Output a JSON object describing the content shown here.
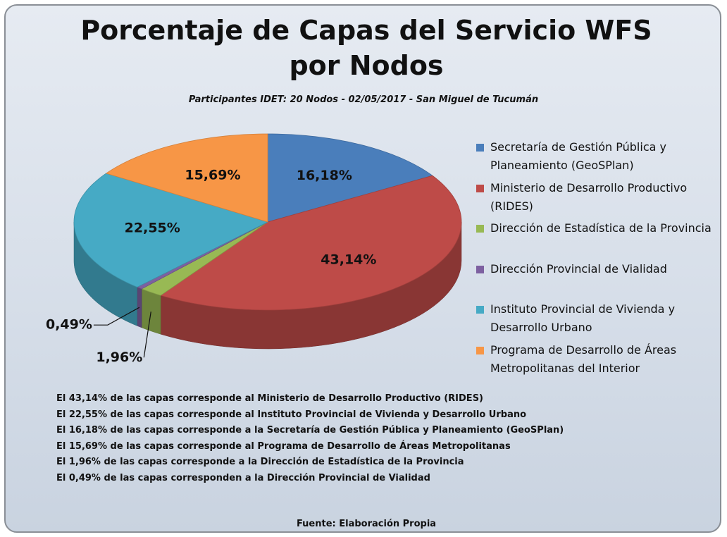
{
  "chart_data": {
    "type": "pie",
    "title": "Porcentaje de Capas del Servicio WFS por Nodos",
    "subtitle": "Participantes IDET: 20 Nodos - 02/05/2017  - San Miguel de Tucumán",
    "categories": [
      "Secretaría de Gestión Pública y Planeamiento (GeoSPlan)",
      "Ministerio de Desarrollo Productivo (RIDES)",
      "Dirección de Estadística de la Provincia",
      "Dirección Provincial de Vialidad",
      "Instituto Provincial de Vivienda y Desarrollo Urbano",
      "Programa de Desarrollo de Áreas Metropolitanas del Interior"
    ],
    "values": [
      16.18,
      43.14,
      1.96,
      0.49,
      22.55,
      15.69
    ],
    "value_labels": [
      "16,18%",
      "43,14%",
      "1,96%",
      "0,49%",
      "22,55%",
      "15,69%"
    ],
    "colors": [
      "#4a7ebb",
      "#be4b48",
      "#98b954",
      "#7d60a0",
      "#46aac5",
      "#f79646"
    ],
    "legend": "right",
    "notes": [
      "El 43,14% de las capas corresponde al Ministerio de Desarrollo Productivo (RIDES)",
      "El 22,55% de las capas corresponde  al Instituto Provincial de Vivienda y Desarrollo Urbano",
      "El 16,18% de las capas corresponde a  la Secretaría de Gestión Pública y Planeamiento (GeoSPlan)",
      "El 15,69% de las capas corresponde  al Programa de Desarrollo de Áreas Metropolitanas",
      "El 1,96% de las capas corresponde a la Dirección de Estadística de la Provincia",
      "El 0,49% de las capas corresponden a la Dirección Provincial de Vialidad"
    ],
    "source": "Fuente:  Elaboración Propia"
  }
}
